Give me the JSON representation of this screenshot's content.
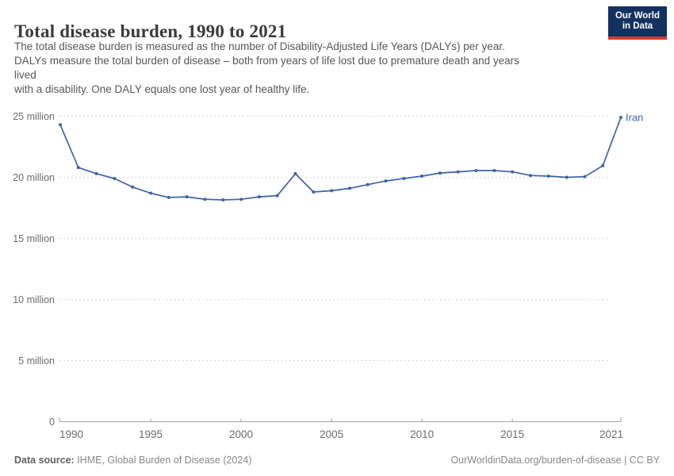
{
  "header": {
    "title": "Total disease burden, 1990 to 2021",
    "subtitle_lines": [
      "The total disease burden is measured as the number of Disability-Adjusted Life Years (DALYs) per year.",
      "DALYs measure the total burden of disease – both from years of life lost due to premature death and years",
      "lived",
      "with a disability. One DALY equals one lost year of healthy life."
    ]
  },
  "logo": {
    "line1": "Our World",
    "line2": "in Data",
    "bg_color": "#12315f",
    "bar_color": "#d93a32"
  },
  "footer": {
    "source_label": "Data source:",
    "source_text": " IHME, Global Burden of Disease (2024)",
    "attribution": "OurWorldinData.org/burden-of-disease | CC BY"
  },
  "chart_data": {
    "type": "line",
    "title": "Total disease burden, 1990 to 2021",
    "unit": "DALYs (millions)",
    "xlabel": "",
    "ylabel": "",
    "ylim_millions": [
      0,
      25
    ],
    "grid": "dashed-horizontal",
    "legend_position": "end-of-line",
    "x": [
      1990,
      1991,
      1992,
      1993,
      1994,
      1995,
      1996,
      1997,
      1998,
      1999,
      2000,
      2001,
      2002,
      2003,
      2004,
      2005,
      2006,
      2007,
      2008,
      2009,
      2010,
      2011,
      2012,
      2013,
      2014,
      2015,
      2016,
      2017,
      2018,
      2019,
      2020,
      2021
    ],
    "series": [
      {
        "name": "Iran",
        "values_millions": [
          24.3,
          20.8,
          20.3,
          19.9,
          19.2,
          18.7,
          18.35,
          18.4,
          18.2,
          18.15,
          18.2,
          18.4,
          18.5,
          20.3,
          18.8,
          18.9,
          19.1,
          19.4,
          19.7,
          19.9,
          20.1,
          20.35,
          20.45,
          20.55,
          20.55,
          20.45,
          20.15,
          20.1,
          20.0,
          20.05,
          20.95,
          24.9
        ]
      }
    ],
    "xticks": [
      1990,
      1995,
      2000,
      2005,
      2010,
      2015,
      2021
    ],
    "yticks": [
      {
        "value": 0,
        "label": "0"
      },
      {
        "value": 5,
        "label": "5 million"
      },
      {
        "value": 10,
        "label": "10 million"
      },
      {
        "value": 15,
        "label": "15 million"
      },
      {
        "value": 20,
        "label": "20 million"
      },
      {
        "value": 25,
        "label": "25 million"
      }
    ],
    "line_color": "#4063a3",
    "grid_color": "#d9d9d9",
    "axis_text_color": "#6c6c6c",
    "axis_line_color": "#a3a3a3"
  }
}
